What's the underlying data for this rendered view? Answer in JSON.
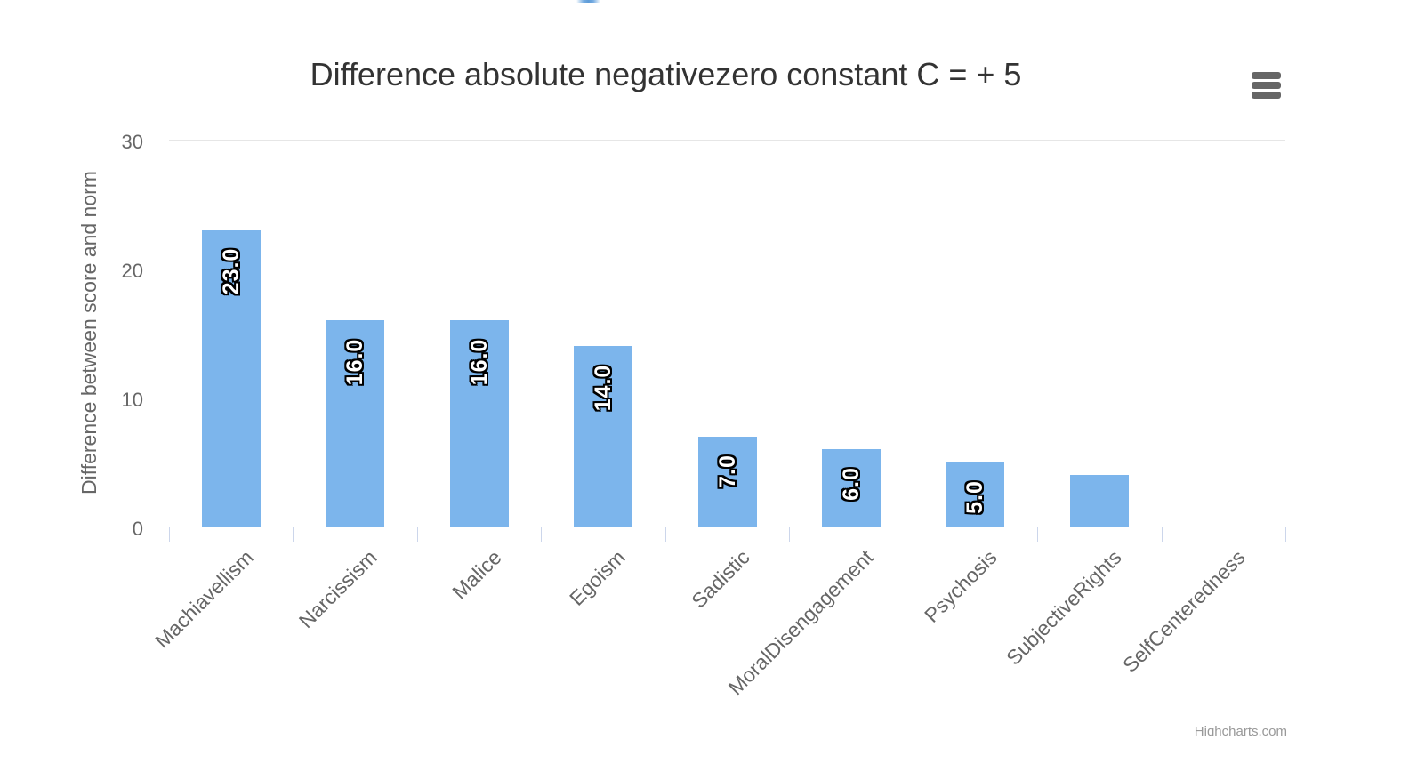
{
  "chart_data": {
    "type": "bar",
    "title": "Difference absolute negativezero constant C = + 5",
    "ylabel": "Difference between score and norm",
    "xlabel": "",
    "categories": [
      "Machiavellism",
      "Narcissism",
      "Malice",
      "Egoism",
      "Sadistic",
      "MoralDisengagement",
      "Psychosis",
      "SubjectiveRights",
      "SelfCenteredness"
    ],
    "values": [
      23.0,
      16.0,
      16.0,
      14.0,
      7.0,
      6.0,
      5.0,
      4.0,
      0.0
    ],
    "data_labels": [
      "23.0",
      "16.0",
      "16.0",
      "14.0",
      "7.0",
      "6.0",
      "5.0",
      null,
      null
    ],
    "ylim": [
      0,
      30
    ],
    "yticks": [
      0,
      10,
      20,
      30
    ],
    "grid": true,
    "legend": false,
    "x_label_rotation_deg": -45,
    "data_label_rotation_deg": -90,
    "credit": "Highcharts.com",
    "icons": {
      "context_menu": "hamburger-icon"
    },
    "colors": {
      "bar": "#7cb5ec",
      "grid": "#e6e6e6",
      "axis": "#ccd6eb",
      "text": "#666666",
      "title_text": "#333333",
      "menu_icon": "#666666",
      "credit": "#999999",
      "data_label_fill": "#ffffff",
      "data_label_outline": "#000000"
    }
  }
}
